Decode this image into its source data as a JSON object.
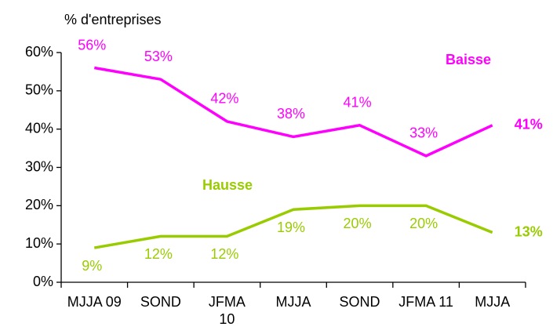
{
  "chart_data": {
    "type": "line",
    "y_axis_label": "% d'entreprises",
    "categories": [
      "MJJA 09",
      "SOND",
      "JFMA 10",
      "MJJA",
      "SOND",
      "JFMA 11",
      "MJJA"
    ],
    "series": [
      {
        "name": "Baisse",
        "color": "#ff00ff",
        "values": [
          56,
          53,
          42,
          38,
          41,
          33,
          41
        ],
        "value_labels": [
          "56%",
          "53%",
          "42%",
          "38%",
          "41%",
          "33%",
          "41%"
        ]
      },
      {
        "name": "Hausse",
        "color": "#99cc00",
        "values": [
          9,
          12,
          12,
          19,
          20,
          20,
          13
        ],
        "value_labels": [
          "9%",
          "12%",
          "12%",
          "19%",
          "20%",
          "20%",
          "13%"
        ]
      }
    ],
    "ylim": [
      0,
      60
    ],
    "yticks": [
      {
        "value": 0,
        "label": "0%"
      },
      {
        "value": 10,
        "label": "10%"
      },
      {
        "value": 20,
        "label": "20%"
      },
      {
        "value": 30,
        "label": "30%"
      },
      {
        "value": 40,
        "label": "40%"
      },
      {
        "value": 50,
        "label": "50%"
      },
      {
        "value": 60,
        "label": "60%"
      }
    ]
  }
}
